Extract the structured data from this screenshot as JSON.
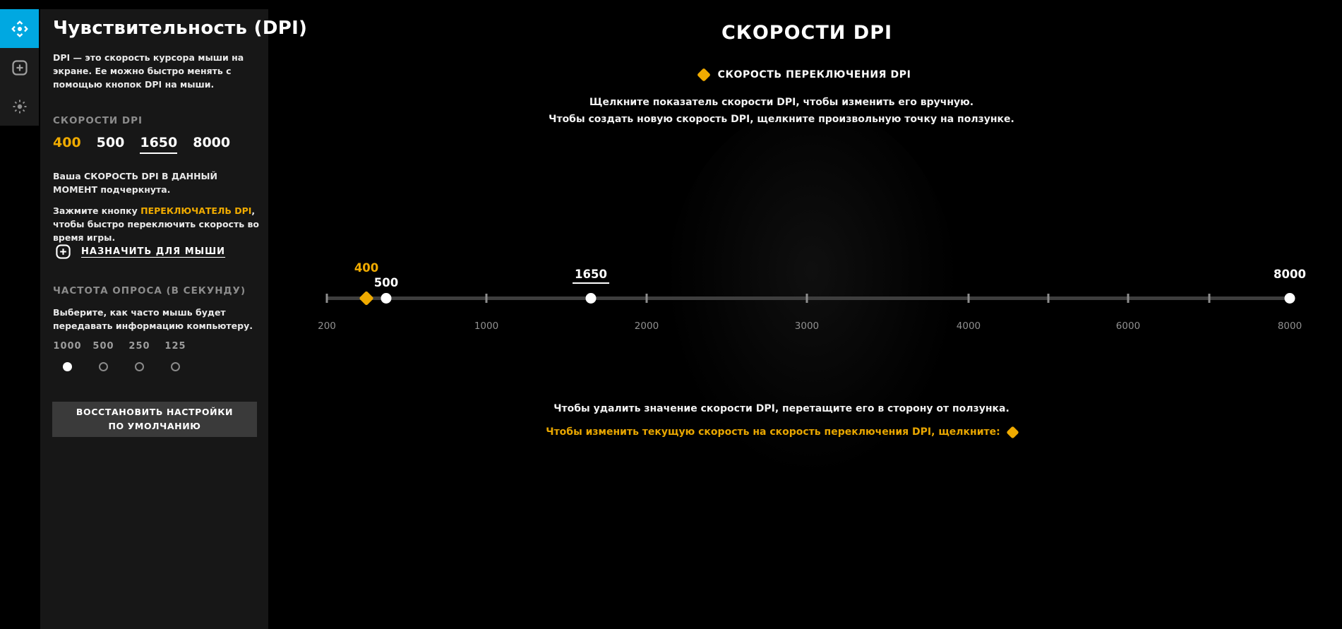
{
  "colors": {
    "accent_blue": "#00a8e1",
    "accent_gold": "#f0ab00",
    "panel_bg": "#171717"
  },
  "sidebar": {
    "items": [
      {
        "icon": "dpi-sensitivity-icon",
        "active": true
      },
      {
        "icon": "add-icon",
        "active": false
      },
      {
        "icon": "lighting-icon",
        "active": false
      }
    ]
  },
  "panel": {
    "title": "Чувствительность (DPI)",
    "description": "DPI — это скорость курсора мыши на экране. Ее можно быстро менять с помощью кнопок DPI на мыши.",
    "dpi_speeds_label": "СКОРОСТИ DPI",
    "dpi_speeds": [
      {
        "label": "400",
        "style": "shift"
      },
      {
        "label": "500",
        "style": "normal"
      },
      {
        "label": "1650",
        "style": "current"
      },
      {
        "label": "8000",
        "style": "normal"
      }
    ],
    "current_note": "Ваша СКОРОСТЬ DPI В ДАННЫЙ МОМЕНТ подчеркнута.",
    "shift_note": [
      "Зажмите кнопку ",
      "ПЕРЕКЛЮЧАТЕЛЬ DPI",
      ", чтобы быстро переключить скорость во время игры."
    ],
    "assign_label": "НАЗНАЧИТЬ ДЛЯ МЫШИ",
    "polling_label": "ЧАСТОТА ОПРОСА (В СЕКУНДУ)",
    "polling_description": "Выберите, как часто мышь будет передавать информацию компьютеру.",
    "polling_options": [
      {
        "label": "1000",
        "selected": true
      },
      {
        "label": "500",
        "selected": false
      },
      {
        "label": "250",
        "selected": false
      },
      {
        "label": "125",
        "selected": false
      }
    ],
    "reset_button": "ВОССТАНОВИТЬ НАСТРОЙКИ ПО УМОЛЧАНИЮ"
  },
  "main": {
    "title": "СКОРОСТИ DPI",
    "legend_label": "СКОРОСТЬ ПЕРЕКЛЮЧЕНИЯ DPI",
    "instructions": [
      "Щелкните показатель скорости DPI, чтобы изменить его вручную.",
      "Чтобы создать новую скорость DPI, щелкните произвольную точку на ползунке."
    ],
    "footer_note": "Чтобы удалить значение скорости DPI, перетащите его в сторону от ползунка.",
    "footer_shift_note": "Чтобы изменить текущую скорость на скорость переключения DPI, щелкните:"
  },
  "slider": {
    "ticks": [
      {
        "label": "200",
        "pos": 0
      },
      {
        "label": "1000",
        "pos": 16.57
      },
      {
        "label": "2000",
        "pos": 33.21
      },
      {
        "label": "3000",
        "pos": 49.85
      },
      {
        "label": "4000",
        "pos": 66.64
      },
      {
        "label": "",
        "pos": 74.93
      },
      {
        "label": "6000",
        "pos": 83.21
      },
      {
        "label": "",
        "pos": 91.64
      },
      {
        "label": "8000",
        "pos": 100
      }
    ],
    "markers": [
      {
        "label": "400",
        "pos": 4.11,
        "type": "shift",
        "level": "high"
      },
      {
        "label": "500",
        "pos": 6.16,
        "type": "normal",
        "level": "low"
      },
      {
        "label": "1650",
        "pos": 27.42,
        "type": "current",
        "level": "normal"
      },
      {
        "label": "8000",
        "pos": 100,
        "type": "normal",
        "level": "normal"
      }
    ]
  }
}
